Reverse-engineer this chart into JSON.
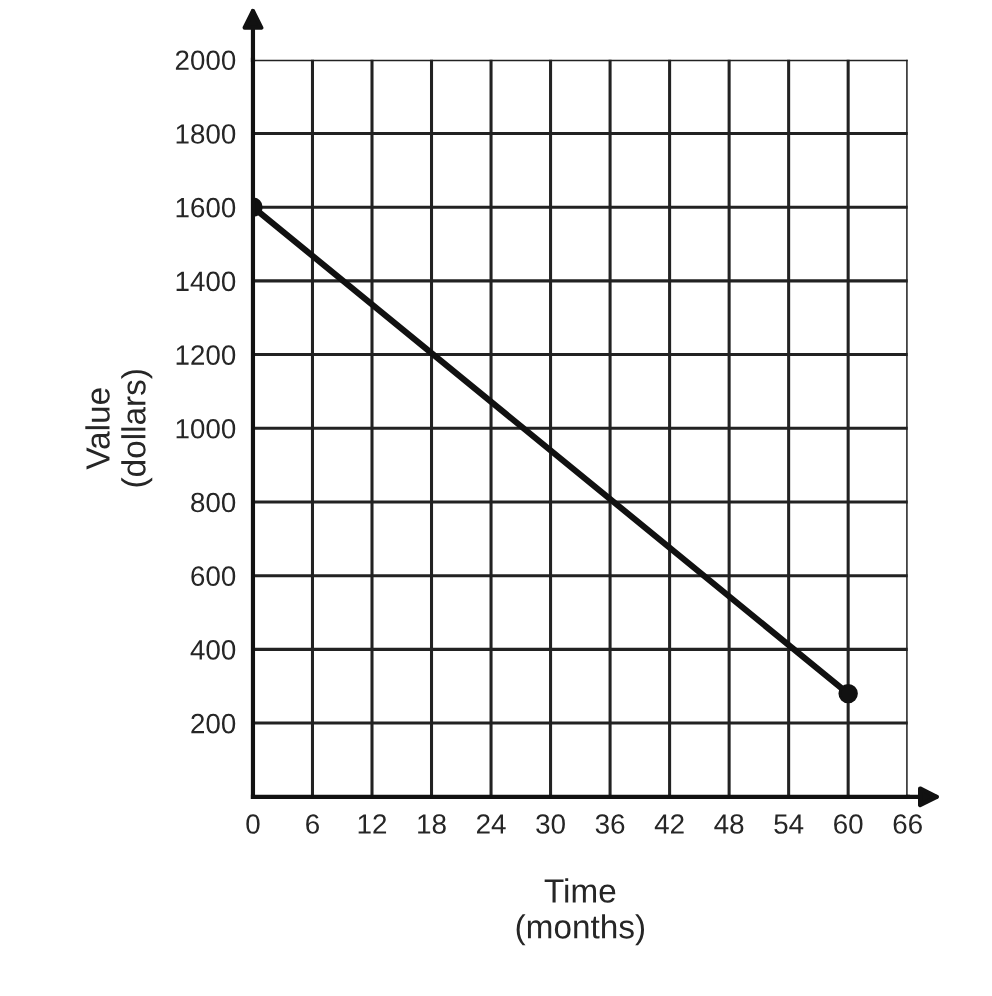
{
  "chart_data": {
    "type": "line",
    "xlabel": "Time\n(months)",
    "ylabel": "Value\n(dollars)",
    "x": [
      0,
      60
    ],
    "series": [
      {
        "color": "#111111",
        "values": [
          1600,
          280
        ]
      }
    ],
    "xlim": [
      0,
      66
    ],
    "xticks": [
      0,
      6,
      12,
      18,
      24,
      30,
      36,
      42,
      48,
      54,
      60,
      66
    ],
    "ylim": [
      0,
      2000
    ],
    "yticks": [
      200,
      400,
      600,
      800,
      1000,
      1200,
      1400,
      1600,
      1800,
      2000
    ],
    "grid": true,
    "marker": "circle",
    "line_style": "solid"
  }
}
